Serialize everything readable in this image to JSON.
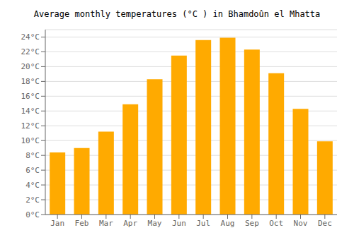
{
  "chart_data": {
    "type": "bar",
    "title": "Average monthly temperatures (°C ) in Bhamdoûn el Mhatta",
    "categories": [
      "Jan",
      "Feb",
      "Mar",
      "Apr",
      "May",
      "Jun",
      "Jul",
      "Aug",
      "Sep",
      "Oct",
      "Nov",
      "Dec"
    ],
    "values": [
      8.4,
      9.0,
      11.2,
      14.9,
      18.3,
      21.5,
      23.6,
      23.9,
      22.3,
      19.1,
      14.3,
      9.9
    ],
    "color": "#FFAA00",
    "ylim": [
      0,
      25
    ],
    "yticks": [
      {
        "value": 0,
        "label": "0°C"
      },
      {
        "value": 2,
        "label": "2°C"
      },
      {
        "value": 4,
        "label": "4°C"
      },
      {
        "value": 6,
        "label": "6°C"
      },
      {
        "value": 8,
        "label": "8°C"
      },
      {
        "value": 10,
        "label": "10°C"
      },
      {
        "value": 12,
        "label": "12°C"
      },
      {
        "value": 14,
        "label": "14°C"
      },
      {
        "value": 16,
        "label": "16°C"
      },
      {
        "value": 18,
        "label": "18°C"
      },
      {
        "value": 20,
        "label": "20°C"
      },
      {
        "value": 22,
        "label": "22°C"
      },
      {
        "value": 24,
        "label": "24°C"
      }
    ],
    "grid": true
  }
}
